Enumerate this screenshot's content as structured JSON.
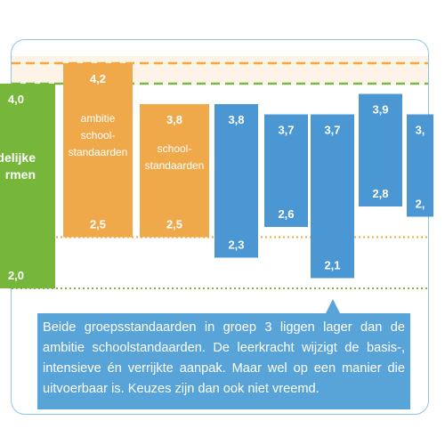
{
  "colors": {
    "green": "#76b73b",
    "orange": "#efa94a",
    "blue": "#4b97d4",
    "guideline_orange": "#f2a83a",
    "guideline_green": "#79b842",
    "frame": "#8ec5ea",
    "band": "#fdf3e6",
    "callout": "#58a4d8"
  },
  "chart_data": {
    "type": "bar",
    "subtype": "floating-range",
    "grid": false,
    "legend": "none",
    "reference_lines": [
      {
        "style": "dashed",
        "color": "orange",
        "value": 4.2
      },
      {
        "style": "dashed",
        "color": "green",
        "value": 4.0
      },
      {
        "style": "dotted",
        "color": "orange",
        "value": 2.5
      },
      {
        "style": "dotted",
        "color": "green",
        "value": 2.0
      }
    ],
    "bars": [
      {
        "color": "green",
        "high": 4.0,
        "low": 2.0,
        "high_label": "4,0",
        "low_label": "2,0",
        "inner_label": [
          "delijke",
          "rmen"
        ]
      },
      {
        "color": "orange",
        "high": 4.2,
        "low": 2.5,
        "high_label": "4,2",
        "low_label": "2,5",
        "inner_label": [
          "ambitie",
          "school-",
          "standaarden"
        ]
      },
      {
        "color": "orange",
        "high": 3.8,
        "low": 2.5,
        "high_label": "3,8",
        "low_label": "2,5",
        "inner_label": [
          "school-",
          "standaarden"
        ]
      },
      {
        "color": "blue",
        "high": 3.8,
        "low": 2.3,
        "high_label": "3,8",
        "low_label": "2,3",
        "inner_label": []
      },
      {
        "color": "blue",
        "high": 3.7,
        "low": 2.6,
        "high_label": "3,7",
        "low_label": "2,6",
        "inner_label": []
      },
      {
        "color": "blue",
        "high": 3.7,
        "low": 2.1,
        "high_label": "3,7",
        "low_label": "2,1",
        "inner_label": []
      },
      {
        "color": "blue",
        "high": 3.9,
        "low": 2.8,
        "high_label": "3,9",
        "low_label": "2,8",
        "inner_label": []
      },
      {
        "color": "blue",
        "high": 3.7,
        "low": 2.7,
        "high_label": "3,",
        "low_label": "2,",
        "inner_label": []
      }
    ]
  },
  "callout": {
    "text": "Beide groepsstandaarden in groep 3 liggen lager dan de ambitie schoolstandaarden. De leerkracht wijzigt de basis-, intensieve én verrijkte aanpak. Maar wel op een manier die uitvoerbaar is. Keuzes zijn dan ook niet vreemd."
  }
}
